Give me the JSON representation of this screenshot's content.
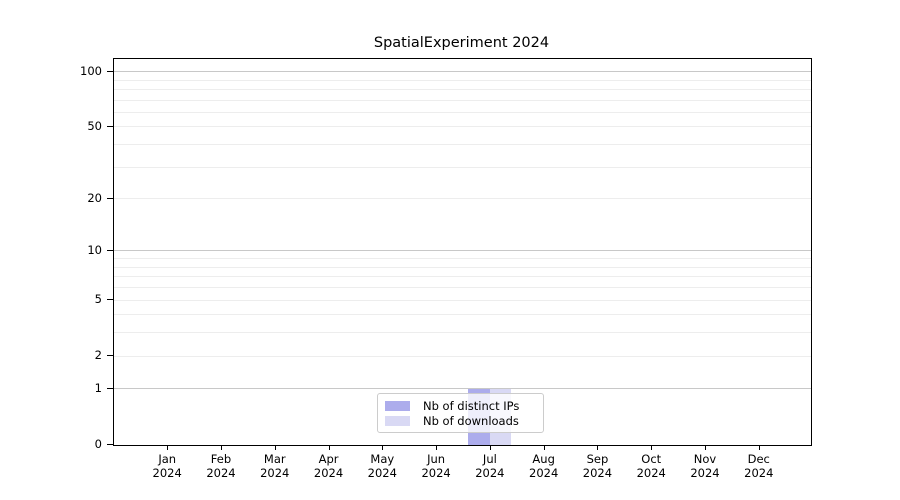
{
  "chart_data": {
    "type": "bar",
    "title": "SpatialExperiment 2024",
    "categories": [
      "Jan 2024",
      "Feb 2024",
      "Mar 2024",
      "Apr 2024",
      "May 2024",
      "Jun 2024",
      "Jul 2024",
      "Aug 2024",
      "Sep 2024",
      "Oct 2024",
      "Nov 2024",
      "Dec 2024"
    ],
    "x_tick_months": [
      "Jan",
      "Feb",
      "Mar",
      "Apr",
      "May",
      "Jun",
      "Jul",
      "Aug",
      "Sep",
      "Oct",
      "Nov",
      "Dec"
    ],
    "x_tick_year": "2024",
    "series": [
      {
        "name": "Nb of distinct IPs",
        "color": "#acacec",
        "values": [
          0,
          0,
          0,
          0,
          0,
          0,
          1,
          0,
          0,
          0,
          0,
          0
        ]
      },
      {
        "name": "Nb of downloads",
        "color": "#d9d9f4",
        "values": [
          0,
          0,
          0,
          0,
          0,
          0,
          1,
          0,
          0,
          0,
          0,
          0
        ]
      }
    ],
    "xlabel": "",
    "ylabel": "",
    "y_ticks": [
      0,
      1,
      2,
      5,
      10,
      20,
      50,
      100
    ],
    "y_major_gridlines": [
      1,
      10,
      100
    ],
    "y_minor_gridlines": [
      2,
      3,
      4,
      5,
      6,
      7,
      8,
      9,
      20,
      30,
      40,
      50,
      60,
      70,
      80,
      90
    ],
    "y_scale": "log10(value+1)",
    "ylim": [
      0,
      117
    ],
    "grid": "horizontal",
    "legend_position": "bottom-center",
    "colors": {
      "bar_distinct_ips": "#acacec",
      "bar_downloads": "#d9d9f4",
      "major_grid": "#c8c8c8",
      "minor_grid": "#ededed",
      "axis": "#000000",
      "legend_border": "#cccccc",
      "background": "#ffffff"
    }
  }
}
